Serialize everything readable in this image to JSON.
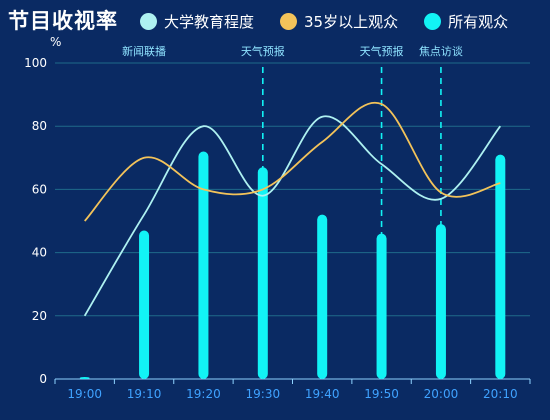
{
  "header": {
    "title": "节目收视率"
  },
  "legend": [
    {
      "name": "大学教育程度",
      "color": "#aef1f1"
    },
    {
      "name": "35岁以上观众",
      "color": "#f3c35a"
    },
    {
      "name": "所有观众",
      "color": "#12f3f5"
    }
  ],
  "chart_data": {
    "type": "bar",
    "title": "节目收视率",
    "ylabel": "%",
    "ylim": [
      0,
      100
    ],
    "yticks": [
      0,
      20,
      40,
      60,
      80,
      100
    ],
    "categories": [
      "19:00",
      "19:10",
      "19:20",
      "19:30",
      "19:40",
      "19:50",
      "20:00",
      "20:10"
    ],
    "series": [
      {
        "name": "大学教育程度",
        "type": "line",
        "values": [
          20,
          52,
          80,
          58,
          83,
          68,
          57,
          80
        ]
      },
      {
        "name": "35岁以上观众",
        "type": "line",
        "values": [
          50,
          70,
          60,
          60,
          75,
          87,
          59,
          62
        ]
      },
      {
        "name": "所有观众",
        "type": "bar",
        "values": [
          0.5,
          47,
          72,
          67,
          52,
          46,
          49,
          71
        ]
      }
    ],
    "annotations": [
      {
        "label": "新闻联播",
        "at": "19:10",
        "line": false
      },
      {
        "label": "天气预报",
        "at": "19:30",
        "line": true
      },
      {
        "label": "天气预报",
        "at": "19:50",
        "line": true
      },
      {
        "label": "焦点访谈",
        "at": "20:00",
        "line": true
      }
    ],
    "grid": true,
    "legend_position": "top"
  }
}
